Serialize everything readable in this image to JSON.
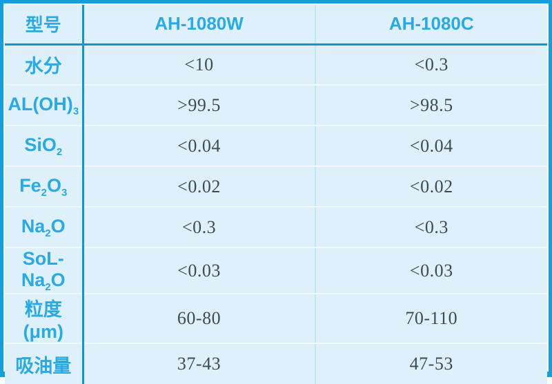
{
  "table": {
    "header": {
      "col1": "型号",
      "col2": "AH-1080W",
      "col3": "AH-1080C"
    },
    "rows": [
      {
        "label": [
          {
            "t": "水分"
          }
        ],
        "values": [
          "<10",
          "<0.3"
        ]
      },
      {
        "label": [
          {
            "t": "AL(OH)"
          },
          {
            "t": "3",
            "sub": true
          }
        ],
        "values": [
          ">99.5",
          ">98.5"
        ]
      },
      {
        "label": [
          {
            "t": "SiO"
          },
          {
            "t": "2",
            "sub": true
          }
        ],
        "values": [
          "<0.04",
          "<0.04"
        ]
      },
      {
        "label": [
          {
            "t": "Fe"
          },
          {
            "t": "2",
            "sub": true
          },
          {
            "t": "O"
          },
          {
            "t": "3",
            "sub": true
          }
        ],
        "values": [
          "<0.02",
          "<0.02"
        ]
      },
      {
        "label": [
          {
            "t": "Na"
          },
          {
            "t": "2",
            "sub": true
          },
          {
            "t": "O"
          }
        ],
        "values": [
          "<0.3",
          "<0.3"
        ]
      },
      {
        "label": [
          {
            "t": "SoL-Na"
          },
          {
            "t": "2",
            "sub": true
          },
          {
            "t": "O"
          }
        ],
        "values": [
          "<0.03",
          "<0.03"
        ]
      },
      {
        "label": [
          {
            "t": "粒度(μm)"
          }
        ],
        "values": [
          "60-80",
          "70-110"
        ]
      },
      {
        "label": [
          {
            "t": "吸油量"
          }
        ],
        "values": [
          "37-43",
          "47-53"
        ]
      }
    ]
  },
  "colors": {
    "frame_blue": "#149fdb",
    "strong_line_blue": "#1095d2",
    "text_blue": "#2ba9e2",
    "cell_bg": "#def0f9",
    "light_col_divider": "#c6e4f2",
    "row_divider": "#f0f9fd",
    "value_text": "#3e4a57"
  }
}
